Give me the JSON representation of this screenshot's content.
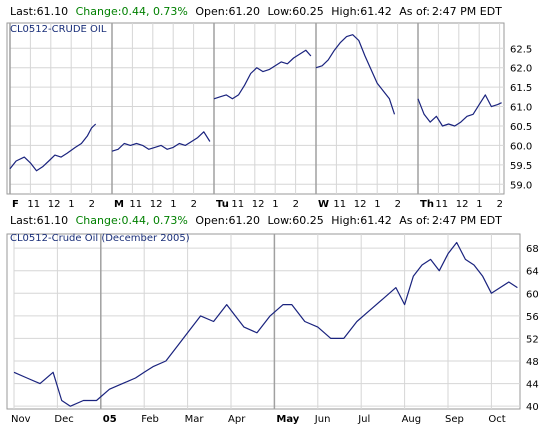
{
  "colors": {
    "text": "#000000",
    "up_change": "#008000",
    "series_label": "#1a2f7a",
    "line": "#1a237e",
    "grid": "#d6d6d6",
    "session_divider": "#a0a0a0",
    "border": "#9a9a9a"
  },
  "charts": [
    {
      "quote": {
        "last_label": "Last:",
        "last_value": "61.10",
        "change_label": "Change:",
        "change_value": "0.44, 0.73%",
        "open_label": "Open:",
        "open_value": "61.20",
        "low_label": "Low:",
        "low_value": "60.25",
        "high_label": "High:",
        "high_value": "61.42",
        "asof_label": "As of:",
        "asof_value": "2:47 PM EDT"
      },
      "series_label": "CL0512-CRUDE OIL"
    },
    {
      "quote": {
        "last_label": "Last:",
        "last_value": "61.10",
        "change_label": "Change:",
        "change_value": "0.44, 0.73%",
        "open_label": "Open:",
        "open_value": "61.20",
        "low_label": "Low:",
        "low_value": "60.25",
        "high_label": "High:",
        "high_value": "61.42",
        "asof_label": "As of:",
        "asof_value": "2:47 PM EDT"
      },
      "series_label": "CL0512-Crude Oil (December 2005)"
    }
  ],
  "chart_data": [
    {
      "type": "line",
      "grid": true,
      "yaxis_position": "right",
      "ylim": [
        58.75,
        63.15
      ],
      "yticks": [
        59.0,
        59.5,
        60.0,
        60.5,
        61.0,
        61.5,
        62.0,
        62.5
      ],
      "x_ticks": [
        {
          "label": "F",
          "major": true
        },
        {
          "label": "11",
          "major": false
        },
        {
          "label": "12",
          "major": false
        },
        {
          "label": "1",
          "major": false
        },
        {
          "label": "2",
          "major": false
        },
        {
          "label": "M",
          "major": true
        },
        {
          "label": "11",
          "major": false
        },
        {
          "label": "12",
          "major": false
        },
        {
          "label": "1",
          "major": false
        },
        {
          "label": "2",
          "major": false
        },
        {
          "label": "Tu",
          "major": true
        },
        {
          "label": "11",
          "major": false
        },
        {
          "label": "12",
          "major": false
        },
        {
          "label": "1",
          "major": false
        },
        {
          "label": "2",
          "major": false
        },
        {
          "label": "W",
          "major": true
        },
        {
          "label": "11",
          "major": false
        },
        {
          "label": "12",
          "major": false
        },
        {
          "label": "1",
          "major": false
        },
        {
          "label": "2",
          "major": false
        },
        {
          "label": "Th",
          "major": true
        },
        {
          "label": "11",
          "major": false
        },
        {
          "label": "12",
          "major": false
        },
        {
          "label": "1",
          "major": false
        },
        {
          "label": "2",
          "major": false
        }
      ],
      "sessions": [
        [
          [
            0,
            59.4
          ],
          [
            0.3,
            59.6
          ],
          [
            0.7,
            59.7
          ],
          [
            1.0,
            59.55
          ],
          [
            1.3,
            59.35
          ],
          [
            1.6,
            59.45
          ],
          [
            1.9,
            59.6
          ],
          [
            2.2,
            59.75
          ],
          [
            2.5,
            59.7
          ],
          [
            2.8,
            59.8
          ],
          [
            3.2,
            59.95
          ],
          [
            3.5,
            60.05
          ],
          [
            3.8,
            60.25
          ],
          [
            4.0,
            60.45
          ],
          [
            4.2,
            60.55
          ]
        ],
        [
          [
            5.0,
            59.85
          ],
          [
            5.3,
            59.9
          ],
          [
            5.6,
            60.05
          ],
          [
            5.9,
            60.0
          ],
          [
            6.2,
            60.05
          ],
          [
            6.5,
            60.0
          ],
          [
            6.8,
            59.9
          ],
          [
            7.1,
            59.95
          ],
          [
            7.4,
            60.0
          ],
          [
            7.7,
            59.9
          ],
          [
            8.0,
            59.95
          ],
          [
            8.3,
            60.05
          ],
          [
            8.6,
            60.0
          ],
          [
            8.9,
            60.1
          ],
          [
            9.2,
            60.2
          ],
          [
            9.5,
            60.35
          ],
          [
            9.8,
            60.1
          ]
        ],
        [
          [
            10.0,
            61.2
          ],
          [
            10.3,
            61.25
          ],
          [
            10.6,
            61.3
          ],
          [
            10.9,
            61.2
          ],
          [
            11.2,
            61.3
          ],
          [
            11.5,
            61.55
          ],
          [
            11.8,
            61.85
          ],
          [
            12.1,
            62.0
          ],
          [
            12.4,
            61.9
          ],
          [
            12.7,
            61.95
          ],
          [
            13.0,
            62.05
          ],
          [
            13.3,
            62.15
          ],
          [
            13.6,
            62.1
          ],
          [
            13.9,
            62.25
          ],
          [
            14.2,
            62.35
          ],
          [
            14.5,
            62.45
          ],
          [
            14.75,
            62.3
          ]
        ],
        [
          [
            15.0,
            62.0
          ],
          [
            15.3,
            62.05
          ],
          [
            15.6,
            62.2
          ],
          [
            15.9,
            62.45
          ],
          [
            16.2,
            62.65
          ],
          [
            16.5,
            62.8
          ],
          [
            16.8,
            62.85
          ],
          [
            17.1,
            62.7
          ],
          [
            17.4,
            62.3
          ],
          [
            17.7,
            61.95
          ],
          [
            18.0,
            61.6
          ],
          [
            18.3,
            61.4
          ],
          [
            18.6,
            61.2
          ],
          [
            18.85,
            60.8
          ]
        ],
        [
          [
            20.0,
            61.2
          ],
          [
            20.3,
            60.8
          ],
          [
            20.6,
            60.6
          ],
          [
            20.9,
            60.75
          ],
          [
            21.2,
            60.5
          ],
          [
            21.5,
            60.55
          ],
          [
            21.8,
            60.5
          ],
          [
            22.1,
            60.6
          ],
          [
            22.4,
            60.75
          ],
          [
            22.7,
            60.8
          ],
          [
            23.0,
            61.05
          ],
          [
            23.3,
            61.3
          ],
          [
            23.6,
            61.0
          ],
          [
            23.9,
            61.05
          ],
          [
            24.1,
            61.1
          ]
        ]
      ]
    },
    {
      "type": "line",
      "title": "CL0512-Crude Oil (December 2005)",
      "grid": true,
      "yaxis_position": "right",
      "ylim": [
        39.5,
        70.5
      ],
      "yticks": [
        40,
        44,
        48,
        52,
        56,
        60,
        64,
        68
      ],
      "x_ticks": [
        {
          "label": "Nov",
          "major": false
        },
        {
          "label": "Dec",
          "major": false
        },
        {
          "label": "05",
          "major": true
        },
        {
          "label": "Feb",
          "major": false
        },
        {
          "label": "Mar",
          "major": false
        },
        {
          "label": "Apr",
          "major": false
        },
        {
          "label": "May",
          "major": true
        },
        {
          "label": "Jun",
          "major": false
        },
        {
          "label": "Jul",
          "major": false
        },
        {
          "label": "Aug",
          "major": false
        },
        {
          "label": "Sep",
          "major": false
        },
        {
          "label": "Oct",
          "major": false
        }
      ],
      "series": [
        {
          "x": [
            0.0,
            0.3,
            0.6,
            0.9,
            1.1,
            1.3,
            1.6,
            1.9,
            2.2,
            2.5,
            2.8,
            3.0,
            3.2,
            3.5,
            3.8,
            4.0,
            4.3,
            4.6,
            4.9,
            5.1,
            5.3,
            5.6,
            5.9,
            6.2,
            6.4,
            6.7,
            7.0,
            7.3,
            7.6,
            7.9,
            8.2,
            8.5,
            8.8,
            9.0,
            9.2,
            9.4,
            9.6,
            9.8,
            10.0,
            10.2,
            10.4,
            10.6,
            10.8,
            11.0,
            11.2,
            11.4,
            11.6
          ],
          "values": [
            46,
            45,
            44,
            46,
            41,
            40,
            41,
            41,
            43,
            44,
            45,
            46,
            47,
            48,
            51,
            53,
            56,
            55,
            58,
            56,
            54,
            53,
            56,
            58,
            58,
            55,
            54,
            52,
            52,
            55,
            57,
            59,
            61,
            58,
            63,
            65,
            66,
            64,
            67,
            69,
            66,
            65,
            63,
            60,
            61,
            62,
            61
          ]
        }
      ]
    }
  ]
}
